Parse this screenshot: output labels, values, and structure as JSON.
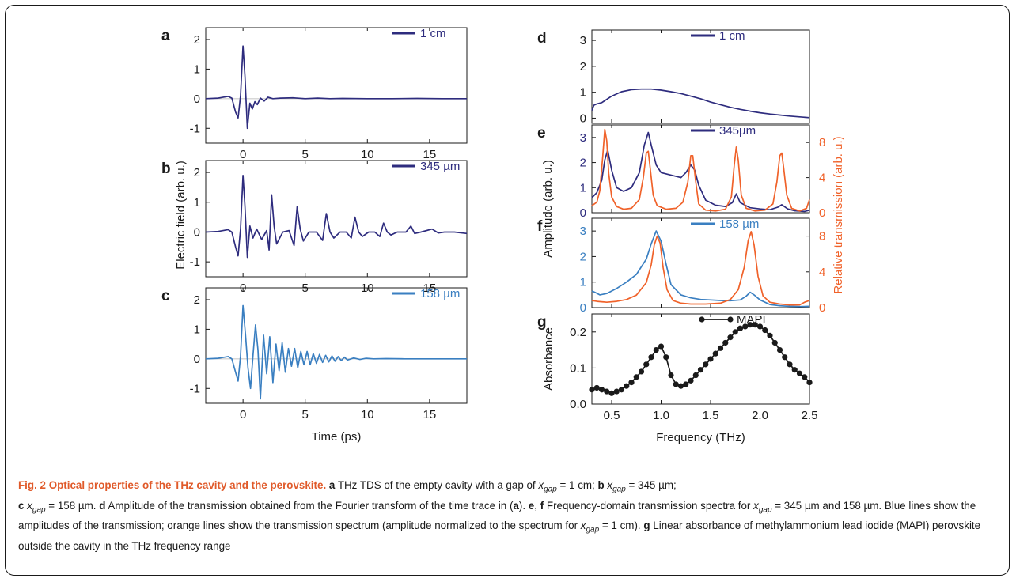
{
  "colors": {
    "navy": "#2e2c7e",
    "blue": "#3a7fc1",
    "orange": "#f0622a",
    "black": "#1a1a1a",
    "caption_lead": "#e05a2a"
  },
  "left": {
    "ylabel": "Electric field (arb. u.)",
    "xlabel": "Time (ps)"
  },
  "right": {
    "ylabel_left": "Amplitude (arb. u.)",
    "ylabel_right": "Relative transmission (arb. u.)",
    "xlabel": "Frequency (THz)"
  },
  "chart_data": [
    {
      "id": "a",
      "type": "line",
      "panel_label": "a",
      "xlim": [
        -3,
        18
      ],
      "ylim": [
        -1.5,
        2.4
      ],
      "xticks": [
        0,
        5,
        10,
        15
      ],
      "yticks": [
        -1,
        0,
        1,
        2
      ],
      "legend": "1 cm",
      "legend_placement": "top-right",
      "series": [
        {
          "name": "1 cm",
          "color": "#2e2c7e",
          "x": [
            -3,
            -2.0,
            -1.2,
            -0.9,
            -0.6,
            -0.4,
            -0.2,
            0,
            0.15,
            0.35,
            0.55,
            0.75,
            0.95,
            1.15,
            1.4,
            1.7,
            2.0,
            2.4,
            3,
            4,
            5,
            6,
            7,
            8,
            10,
            12,
            14,
            16,
            18
          ],
          "y": [
            0,
            0.02,
            0.08,
            0.02,
            -0.45,
            -0.65,
            0.1,
            1.78,
            0.8,
            -1.0,
            -0.15,
            -0.35,
            -0.1,
            -0.2,
            0.02,
            -0.08,
            0.05,
            0.0,
            0.02,
            0.03,
            0.0,
            0.02,
            0.0,
            0.01,
            0.0,
            0.0,
            0.01,
            0.0,
            0.0
          ]
        }
      ]
    },
    {
      "id": "b",
      "type": "line",
      "panel_label": "b",
      "xlim": [
        -3,
        18
      ],
      "ylim": [
        -1.5,
        2.4
      ],
      "xticks": [
        0,
        5,
        10,
        15
      ],
      "yticks": [
        -1,
        0,
        1,
        2
      ],
      "legend": "345 µm",
      "legend_placement": "top-right",
      "series": [
        {
          "name": "345 µm",
          "color": "#2e2c7e",
          "x": [
            -3,
            -2.0,
            -1.2,
            -0.9,
            -0.6,
            -0.4,
            -0.2,
            0,
            0.15,
            0.35,
            0.55,
            0.8,
            1.1,
            1.5,
            1.9,
            2.1,
            2.3,
            2.5,
            2.7,
            3.2,
            3.7,
            4.1,
            4.35,
            4.6,
            4.85,
            5.3,
            5.9,
            6.4,
            6.7,
            7.0,
            7.3,
            7.8,
            8.3,
            8.7,
            9.0,
            9.3,
            9.6,
            10.1,
            10.6,
            11.0,
            11.3,
            11.6,
            11.9,
            12.4,
            13.1,
            13.5,
            13.8,
            14.3,
            15.2,
            15.7,
            16.2,
            17,
            18
          ],
          "y": [
            0,
            0.02,
            0.08,
            0.0,
            -0.5,
            -0.8,
            0.1,
            1.9,
            0.9,
            -0.85,
            0.2,
            -0.2,
            0.1,
            -0.25,
            0.05,
            -0.6,
            1.25,
            0.2,
            -0.4,
            0.0,
            0.05,
            -0.45,
            0.85,
            0.1,
            -0.3,
            0.0,
            0.0,
            -0.28,
            0.62,
            0.0,
            -0.2,
            0.0,
            0.0,
            -0.2,
            0.5,
            0.0,
            -0.15,
            0.0,
            0.0,
            -0.15,
            0.3,
            0.0,
            -0.1,
            0.0,
            0.0,
            0.2,
            -0.05,
            0.0,
            0.1,
            -0.03,
            0.0,
            0.0,
            -0.05
          ]
        }
      ]
    },
    {
      "id": "c",
      "type": "line",
      "panel_label": "c",
      "xlim": [
        -3,
        18
      ],
      "ylim": [
        -1.5,
        2.4
      ],
      "xticks": [
        0,
        5,
        10,
        15
      ],
      "yticks": [
        -1,
        0,
        1,
        2
      ],
      "xlabel": "Time (ps)",
      "legend": "158 µm",
      "legend_placement": "top-right",
      "series": [
        {
          "name": "158 µm",
          "color": "#3a7fc1",
          "x": [
            -3,
            -2,
            -1.2,
            -0.9,
            -0.6,
            -0.4,
            -0.2,
            0,
            0.2,
            0.4,
            0.6,
            0.8,
            1.0,
            1.2,
            1.4,
            1.65,
            1.9,
            2.15,
            2.4,
            2.65,
            2.9,
            3.15,
            3.4,
            3.65,
            3.9,
            4.15,
            4.4,
            4.65,
            4.9,
            5.15,
            5.4,
            5.65,
            5.9,
            6.15,
            6.4,
            6.65,
            6.9,
            7.15,
            7.4,
            7.65,
            7.9,
            8.15,
            8.4,
            8.9,
            9.4,
            9.9,
            10.5,
            11.5,
            13,
            15,
            18
          ],
          "y": [
            0,
            0.02,
            0.08,
            0.0,
            -0.45,
            -0.75,
            0.1,
            1.8,
            0.8,
            -0.3,
            -1.0,
            0.1,
            1.15,
            0.3,
            -1.35,
            0.8,
            -0.5,
            0.75,
            -0.8,
            0.5,
            -0.4,
            0.55,
            -0.45,
            0.35,
            -0.25,
            0.35,
            -0.3,
            0.25,
            -0.2,
            0.25,
            -0.2,
            0.18,
            -0.15,
            0.15,
            -0.12,
            0.12,
            -0.1,
            0.1,
            -0.08,
            0.08,
            -0.06,
            0.06,
            -0.04,
            0.03,
            -0.02,
            0.02,
            0.0,
            0.01,
            0.0,
            0.0,
            0.0
          ]
        }
      ]
    },
    {
      "id": "d",
      "type": "line",
      "panel_label": "d",
      "xlim": [
        0.3,
        2.5
      ],
      "ylim": [
        -0.2,
        3.4
      ],
      "yticks": [
        0,
        1,
        2,
        3
      ],
      "legend": "1 cm",
      "legend_placement": "top-right",
      "series": [
        {
          "name": "1 cm",
          "color": "#2e2c7e",
          "x": [
            0.3,
            0.32,
            0.35,
            0.4,
            0.5,
            0.6,
            0.7,
            0.8,
            0.9,
            1.0,
            1.1,
            1.2,
            1.3,
            1.4,
            1.5,
            1.6,
            1.7,
            1.8,
            1.9,
            2.0,
            2.1,
            2.2,
            2.3,
            2.4,
            2.5
          ],
          "y": [
            0.3,
            0.5,
            0.55,
            0.6,
            0.85,
            1.02,
            1.1,
            1.12,
            1.12,
            1.08,
            1.02,
            0.95,
            0.85,
            0.75,
            0.62,
            0.52,
            0.42,
            0.34,
            0.27,
            0.21,
            0.16,
            0.12,
            0.08,
            0.05,
            0.02
          ]
        }
      ]
    },
    {
      "id": "e",
      "type": "line",
      "panel_label": "e",
      "xlim": [
        0.3,
        2.5
      ],
      "ylim": [
        0,
        3.5
      ],
      "yticks": [
        0,
        1,
        2,
        3
      ],
      "y2lim": [
        0,
        10
      ],
      "y2ticks": [
        0,
        4,
        8
      ],
      "legend": "345µm",
      "legend_placement": "top-right",
      "series": [
        {
          "name": "345µm",
          "color": "#2e2c7e",
          "axis": "left",
          "x": [
            0.3,
            0.35,
            0.4,
            0.43,
            0.46,
            0.5,
            0.55,
            0.62,
            0.7,
            0.78,
            0.83,
            0.87,
            0.9,
            0.95,
            1.0,
            1.1,
            1.2,
            1.25,
            1.3,
            1.34,
            1.38,
            1.45,
            1.55,
            1.65,
            1.72,
            1.76,
            1.8,
            1.9,
            2.0,
            2.1,
            2.18,
            2.22,
            2.28,
            2.35,
            2.45,
            2.5
          ],
          "y": [
            0.6,
            0.8,
            1.3,
            2.1,
            2.5,
            1.7,
            1.0,
            0.85,
            1.0,
            1.6,
            2.7,
            3.2,
            2.7,
            1.9,
            1.6,
            1.5,
            1.4,
            1.6,
            1.9,
            1.7,
            1.1,
            0.5,
            0.3,
            0.25,
            0.4,
            0.75,
            0.4,
            0.2,
            0.15,
            0.12,
            0.22,
            0.32,
            0.15,
            0.08,
            0.05,
            0.1
          ]
        },
        {
          "name": "Relative transmission 345µm",
          "color": "#f0622a",
          "axis": "right",
          "x": [
            0.3,
            0.35,
            0.38,
            0.41,
            0.43,
            0.45,
            0.47,
            0.5,
            0.55,
            0.62,
            0.7,
            0.78,
            0.82,
            0.85,
            0.87,
            0.89,
            0.92,
            0.96,
            1.05,
            1.15,
            1.22,
            1.27,
            1.3,
            1.32,
            1.35,
            1.38,
            1.45,
            1.55,
            1.65,
            1.71,
            1.74,
            1.76,
            1.78,
            1.81,
            1.86,
            1.95,
            2.05,
            2.13,
            2.17,
            2.2,
            2.22,
            2.24,
            2.27,
            2.32,
            2.4,
            2.47,
            2.5
          ],
          "y": [
            0.8,
            1.2,
            2.5,
            6.5,
            9.5,
            8.2,
            4.5,
            1.8,
            0.7,
            0.4,
            0.5,
            1.5,
            4.0,
            6.8,
            7.0,
            5.0,
            2.0,
            0.8,
            0.4,
            0.5,
            1.2,
            3.5,
            6.5,
            6.5,
            3.5,
            1.0,
            0.3,
            0.2,
            0.4,
            1.8,
            5.5,
            7.5,
            6.0,
            2.0,
            0.5,
            0.2,
            0.3,
            1.0,
            3.5,
            6.5,
            6.8,
            5.0,
            2.0,
            0.5,
            0.2,
            0.5,
            1.5
          ]
        }
      ]
    },
    {
      "id": "f",
      "type": "line",
      "panel_label": "f",
      "xlim": [
        0.3,
        2.5
      ],
      "ylim": [
        0,
        3.5
      ],
      "yticks": [
        0,
        1,
        2,
        3
      ],
      "y2lim": [
        0,
        10
      ],
      "y2ticks": [
        0,
        4,
        8
      ],
      "legend": "158 µm",
      "legend_placement": "top-right",
      "series": [
        {
          "name": "158 µm",
          "color": "#3a7fc1",
          "axis": "left",
          "x": [
            0.3,
            0.33,
            0.38,
            0.45,
            0.55,
            0.65,
            0.75,
            0.85,
            0.9,
            0.95,
            1.0,
            1.05,
            1.1,
            1.2,
            1.3,
            1.4,
            1.5,
            1.6,
            1.7,
            1.8,
            1.86,
            1.9,
            1.94,
            2.0,
            2.1,
            2.2,
            2.3,
            2.4,
            2.5
          ],
          "y": [
            0.65,
            0.6,
            0.5,
            0.55,
            0.75,
            1.0,
            1.3,
            1.9,
            2.5,
            3.0,
            2.6,
            1.7,
            0.9,
            0.5,
            0.38,
            0.32,
            0.3,
            0.28,
            0.27,
            0.3,
            0.45,
            0.6,
            0.5,
            0.3,
            0.12,
            0.07,
            0.05,
            0.04,
            0.05
          ]
        },
        {
          "name": "Relative transmission 158 µm",
          "color": "#f0622a",
          "axis": "right",
          "x": [
            0.3,
            0.35,
            0.45,
            0.55,
            0.65,
            0.75,
            0.85,
            0.9,
            0.93,
            0.96,
            0.99,
            1.02,
            1.06,
            1.12,
            1.2,
            1.3,
            1.45,
            1.6,
            1.7,
            1.78,
            1.84,
            1.88,
            1.91,
            1.94,
            1.98,
            2.03,
            2.1,
            2.2,
            2.3,
            2.4,
            2.45,
            2.5
          ],
          "y": [
            0.8,
            0.7,
            0.6,
            0.7,
            0.9,
            1.4,
            2.8,
            4.8,
            7.0,
            8.0,
            7.2,
            4.5,
            2.0,
            0.8,
            0.5,
            0.4,
            0.4,
            0.5,
            0.9,
            2.0,
            4.5,
            7.5,
            8.5,
            7.0,
            3.5,
            1.3,
            0.6,
            0.4,
            0.3,
            0.3,
            0.6,
            0.8
          ]
        }
      ]
    },
    {
      "id": "g",
      "type": "scatter",
      "panel_label": "g",
      "xlim": [
        0.3,
        2.5
      ],
      "ylim": [
        0,
        0.25
      ],
      "yticks": [
        0.0,
        0.1,
        0.2
      ],
      "xticks": [
        0.5,
        1.0,
        1.5,
        2.0,
        2.5
      ],
      "ylabel": "Absorbance",
      "xlabel": "Frequency (THz)",
      "legend": "MAPI",
      "legend_placement": "top-right",
      "series": [
        {
          "name": "MAPI",
          "color": "#1a1a1a",
          "x": [
            0.3,
            0.35,
            0.4,
            0.45,
            0.5,
            0.55,
            0.6,
            0.65,
            0.7,
            0.75,
            0.8,
            0.85,
            0.9,
            0.95,
            1.0,
            1.05,
            1.1,
            1.15,
            1.2,
            1.25,
            1.3,
            1.35,
            1.4,
            1.45,
            1.5,
            1.55,
            1.6,
            1.65,
            1.7,
            1.75,
            1.8,
            1.85,
            1.9,
            1.95,
            2.0,
            2.05,
            2.1,
            2.15,
            2.2,
            2.25,
            2.3,
            2.35,
            2.4,
            2.45,
            2.5
          ],
          "y": [
            0.04,
            0.045,
            0.04,
            0.035,
            0.03,
            0.035,
            0.04,
            0.05,
            0.06,
            0.075,
            0.09,
            0.11,
            0.13,
            0.15,
            0.16,
            0.13,
            0.08,
            0.055,
            0.05,
            0.055,
            0.065,
            0.08,
            0.095,
            0.11,
            0.125,
            0.14,
            0.155,
            0.17,
            0.185,
            0.2,
            0.21,
            0.215,
            0.22,
            0.22,
            0.215,
            0.205,
            0.19,
            0.17,
            0.15,
            0.13,
            0.11,
            0.095,
            0.085,
            0.075,
            0.06
          ]
        }
      ]
    }
  ],
  "caption": {
    "lead": "Fig. 2 Optical properties of the THz cavity and the perovskite.",
    "parts": [
      {
        "t": " ",
        "s": "n"
      },
      {
        "t": "a",
        "s": "b"
      },
      {
        "t": " THz TDS of the empty cavity with a gap of ",
        "s": "n"
      },
      {
        "t": "x",
        "s": "i"
      },
      {
        "t": "gap",
        "s": "sub"
      },
      {
        "t": " = 1 cm; ",
        "s": "n"
      },
      {
        "t": "b",
        "s": "b"
      },
      {
        "t": " ",
        "s": "n"
      },
      {
        "t": "x",
        "s": "i"
      },
      {
        "t": "gap",
        "s": "sub"
      },
      {
        "t": " = 345 µm;",
        "s": "n"
      },
      {
        "t": "\n",
        "s": "br"
      },
      {
        "t": "c",
        "s": "b"
      },
      {
        "t": " ",
        "s": "n"
      },
      {
        "t": "x",
        "s": "i"
      },
      {
        "t": "gap",
        "s": "sub"
      },
      {
        "t": " = 158 µm. ",
        "s": "n"
      },
      {
        "t": "d",
        "s": "b"
      },
      {
        "t": " Amplitude of the transmission obtained from the Fourier transform of the time trace in (",
        "s": "n"
      },
      {
        "t": "a",
        "s": "b"
      },
      {
        "t": "). ",
        "s": "n"
      },
      {
        "t": "e",
        "s": "b"
      },
      {
        "t": ", ",
        "s": "n"
      },
      {
        "t": "f",
        "s": "b"
      },
      {
        "t": " Frequency-domain transmission spectra for ",
        "s": "n"
      },
      {
        "t": "x",
        "s": "i"
      },
      {
        "t": "gap",
        "s": "sub"
      },
      {
        "t": " = 345 µm and 158 µm. Blue lines show the amplitudes of the transmission; orange lines show the transmission spectrum (amplitude normalized to the spectrum for ",
        "s": "n"
      },
      {
        "t": "x",
        "s": "i"
      },
      {
        "t": "gap",
        "s": "sub"
      },
      {
        "t": " = 1 cm). ",
        "s": "n"
      },
      {
        "t": "g",
        "s": "b"
      },
      {
        "t": " Linear absorbance of methylammonium lead iodide (MAPI) perovskite outside the cavity in the THz frequency range",
        "s": "n"
      }
    ]
  }
}
